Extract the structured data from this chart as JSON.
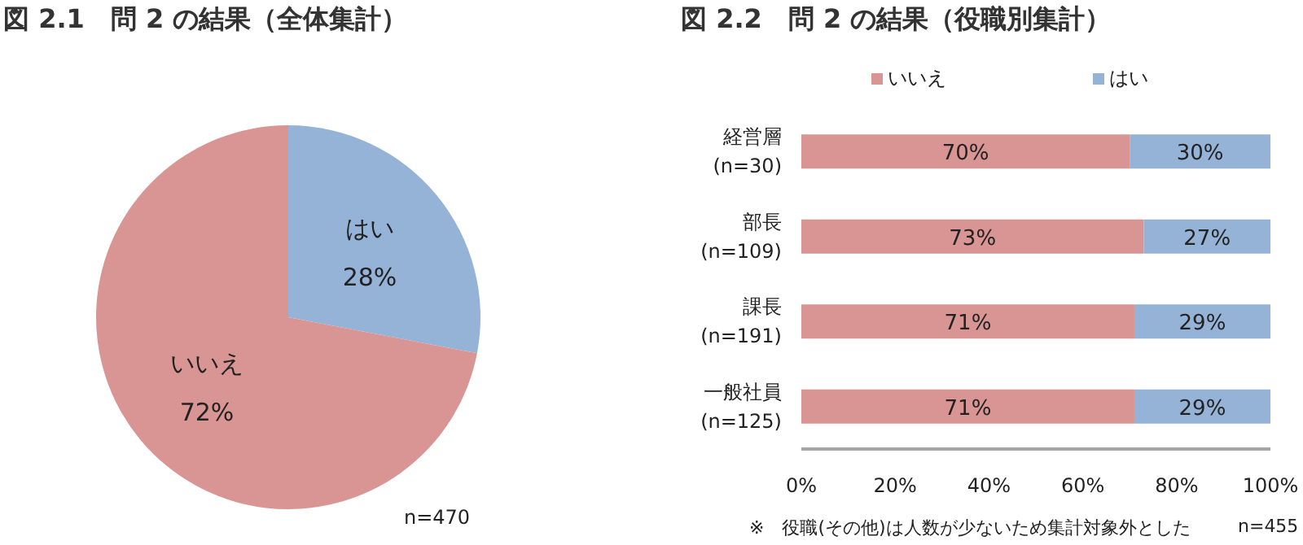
{
  "chart_data": [
    {
      "type": "pie",
      "title": "図 2.1　問 2 の結果（全体集計）",
      "categories": [
        "はい",
        "いいえ"
      ],
      "values": [
        28,
        72
      ],
      "colors": [
        "#95b3d7",
        "#d99594"
      ],
      "value_labels": [
        "28%",
        "72%"
      ],
      "legend": false,
      "annotations": [
        "n=470"
      ]
    },
    {
      "type": "bar",
      "title": "図 2.2　問 2 の結果（役職別集計）",
      "orientation": "horizontal",
      "stacked": true,
      "categories": [
        "経営層\n(n=30)",
        "部長\n(n=109)",
        "課長\n(n=191)",
        "一般社員\n(n=125)"
      ],
      "series": [
        {
          "name": "いいえ",
          "color": "#d99594",
          "values": [
            70,
            73,
            71,
            71
          ],
          "value_labels": [
            "70%",
            "73%",
            "71%",
            "71%"
          ]
        },
        {
          "name": "はい",
          "color": "#95b3d7",
          "values": [
            30,
            27,
            29,
            29
          ],
          "value_labels": [
            "30%",
            "27%",
            "29%",
            "29%"
          ]
        }
      ],
      "xlim": [
        0,
        100
      ],
      "xticks": [
        {
          "value": 0,
          "label": "0%"
        },
        {
          "value": 20,
          "label": "20%"
        },
        {
          "value": 40,
          "label": "40%"
        },
        {
          "value": 60,
          "label": "60%"
        },
        {
          "value": 80,
          "label": "80%"
        },
        {
          "value": 100,
          "label": "100%"
        }
      ],
      "grid": false,
      "legend": "top",
      "annotations": [
        "※　役職(その他)は人数が少ないため集計対象外とした",
        "n=455"
      ]
    }
  ]
}
